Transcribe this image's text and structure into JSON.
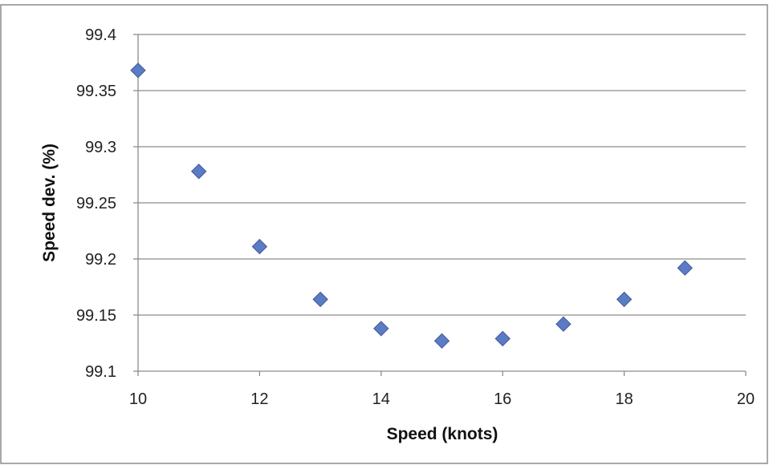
{
  "chart_data": {
    "type": "scatter",
    "title": "",
    "xlabel": "Speed (knots)",
    "ylabel": "Speed dev. (%)",
    "xlim": [
      10,
      20
    ],
    "ylim": [
      99.1,
      99.4
    ],
    "x_ticks": [
      "10",
      "12",
      "14",
      "16",
      "18",
      "20"
    ],
    "y_ticks": [
      "99.1",
      "99.15",
      "99.2",
      "99.25",
      "99.3",
      "99.35",
      "99.4"
    ],
    "grid": "horizontal",
    "legend": "none",
    "marker": "diamond",
    "marker_color": "#5b7bc4",
    "series": [
      {
        "x": [
          10,
          11,
          12,
          13,
          14,
          15,
          16,
          17,
          18,
          19
        ],
        "y": [
          99.368,
          99.278,
          99.211,
          99.164,
          99.138,
          99.127,
          99.129,
          99.142,
          99.164,
          99.192
        ]
      }
    ]
  }
}
